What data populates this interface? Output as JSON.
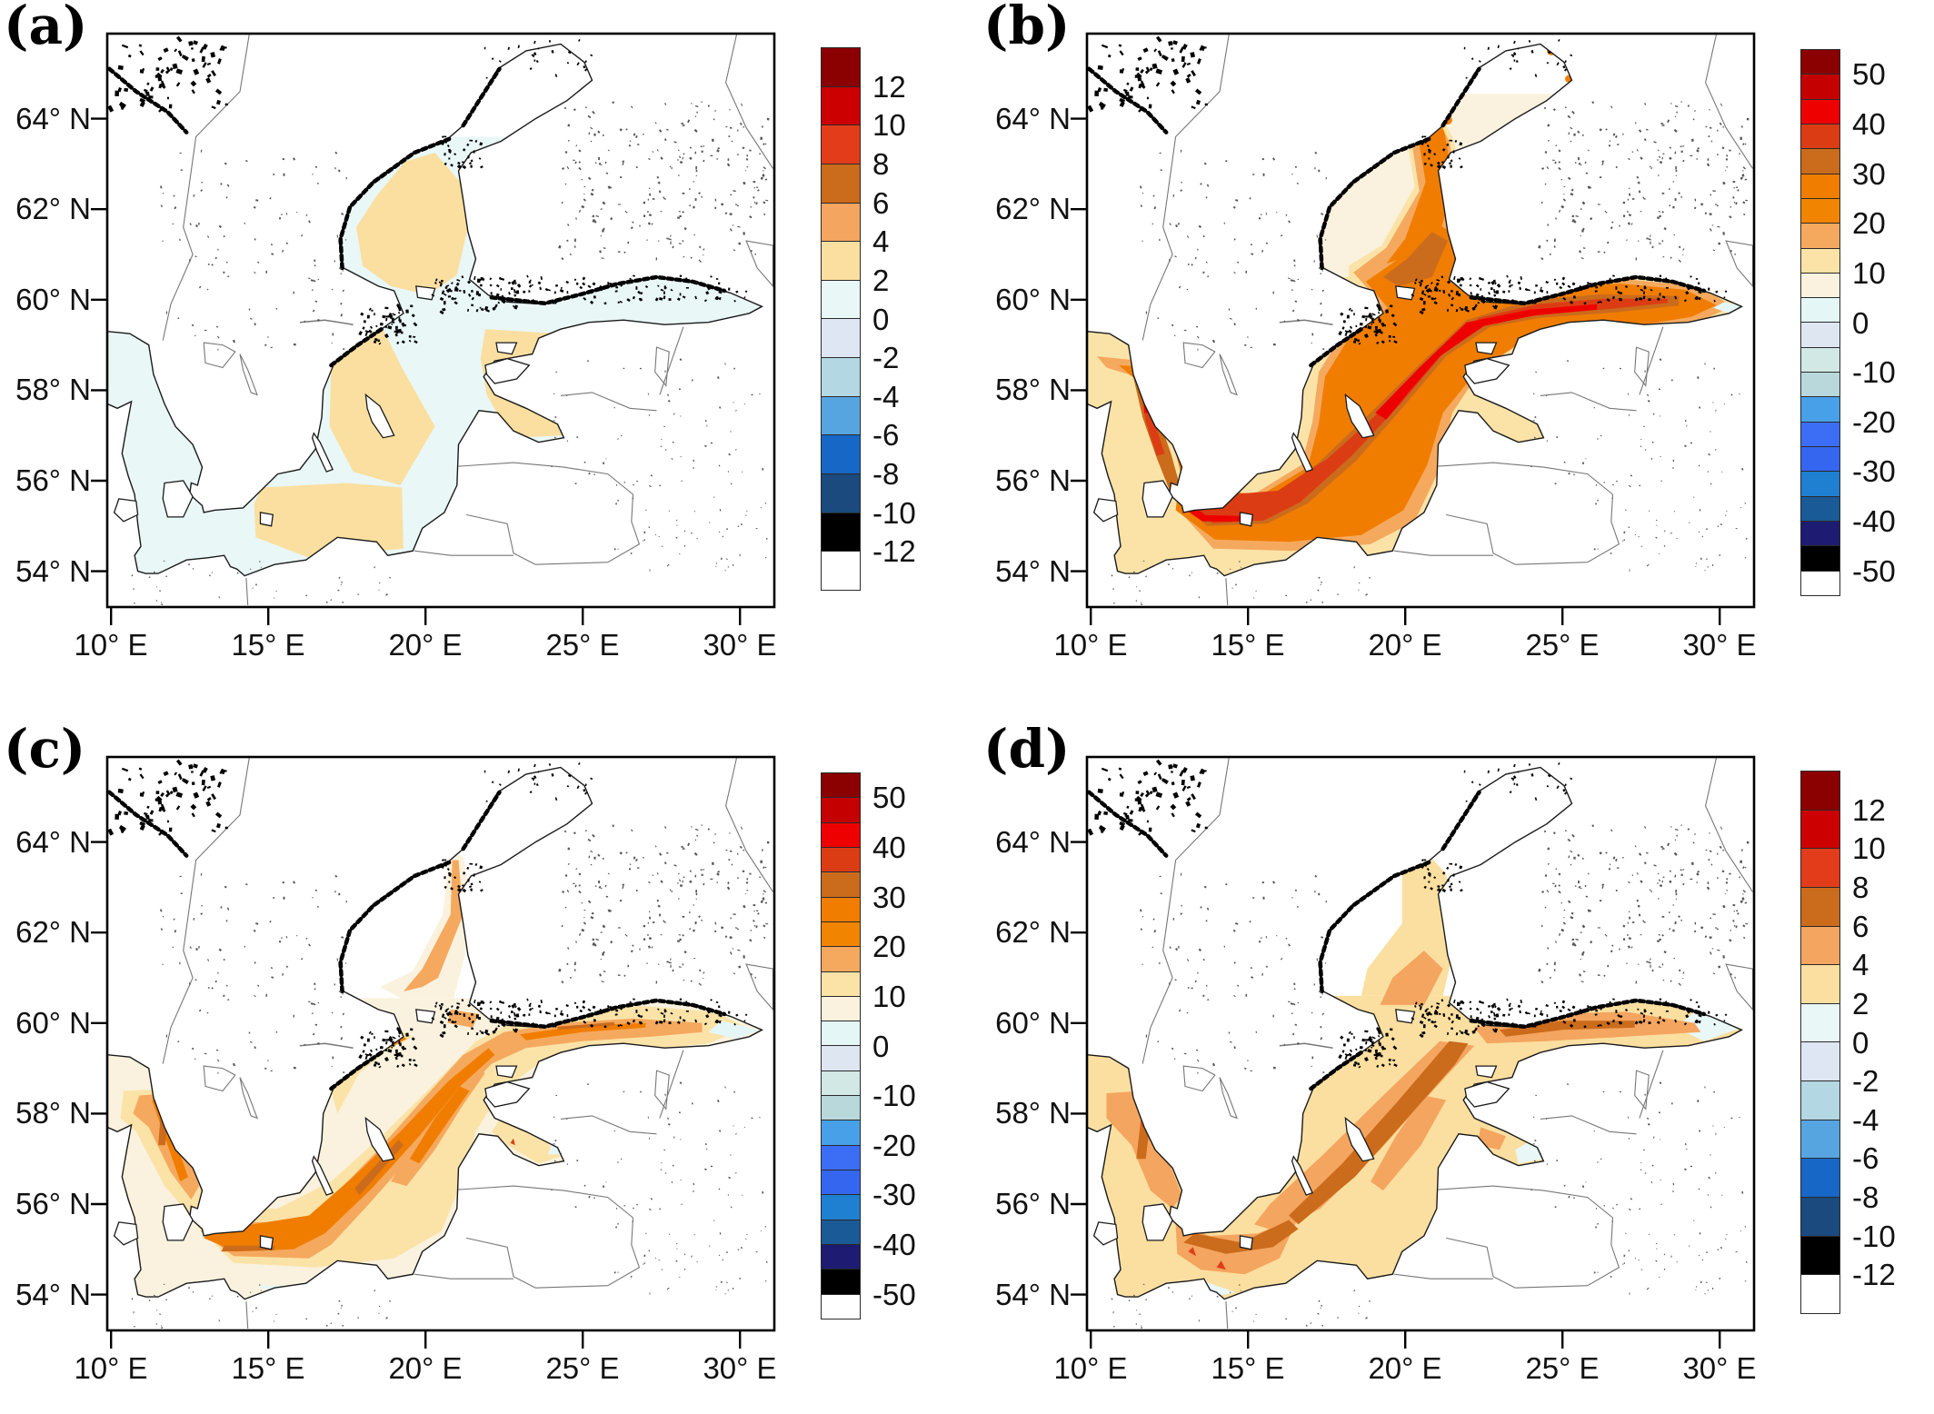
{
  "figure": {
    "background": "#ffffff",
    "panels": [
      {
        "id": "a",
        "label": "(a)",
        "colorbar": {
          "colors": [
            "#8b0000",
            "#cc0000",
            "#e23c1a",
            "#cb6b1c",
            "#f4a55f",
            "#fbdfa0",
            "#e9f7f7",
            "#dde6f2",
            "#b3d7e3",
            "#57a5e0",
            "#1767c6",
            "#1a4a7e",
            "#000000",
            "#ffffff"
          ],
          "tick_labels": [
            "12",
            "10",
            "8",
            "6",
            "4",
            "2",
            "0",
            "-2",
            "-4",
            "-6",
            "-8",
            "-10",
            "-12"
          ],
          "tick_boundaries": [
            1,
            2,
            3,
            4,
            5,
            6,
            7,
            8,
            9,
            10,
            11,
            12,
            13
          ]
        }
      },
      {
        "id": "b",
        "label": "(b)",
        "colorbar": {
          "colors": [
            "#8b0000",
            "#c40000",
            "#ef0000",
            "#dc3c14",
            "#cb6b1c",
            "#f07d00",
            "#f18501",
            "#f5a95e",
            "#fbe3a8",
            "#faf2de",
            "#e4f7f6",
            "#dee6f2",
            "#d2e8e4",
            "#b8d8dc",
            "#48a0e8",
            "#3c6ef5",
            "#3566f0",
            "#1f7fd0",
            "#1a5a96",
            "#1e1c72",
            "#000000",
            "#ffffff"
          ],
          "tick_labels": [
            "50",
            "40",
            "30",
            "20",
            "10",
            "0",
            "-10",
            "-20",
            "-30",
            "-40",
            "-50"
          ],
          "tick_boundaries": [
            1,
            3,
            5,
            7,
            9,
            11,
            13,
            15,
            17,
            19,
            21
          ]
        }
      },
      {
        "id": "c",
        "label": "(c)",
        "colorbar": {
          "colors": [
            "#8b0000",
            "#c40000",
            "#ef0000",
            "#dc3c14",
            "#cb6b1c",
            "#f07d00",
            "#f18501",
            "#f5a95e",
            "#fbe3a8",
            "#faf2de",
            "#e4f7f6",
            "#dee6f2",
            "#d2e8e4",
            "#b8d8dc",
            "#48a0e8",
            "#3c6ef5",
            "#3566f0",
            "#1f7fd0",
            "#1a5a96",
            "#1e1c72",
            "#000000",
            "#ffffff"
          ],
          "tick_labels": [
            "50",
            "40",
            "30",
            "20",
            "10",
            "0",
            "-10",
            "-20",
            "-30",
            "-40",
            "-50"
          ],
          "tick_boundaries": [
            1,
            3,
            5,
            7,
            9,
            11,
            13,
            15,
            17,
            19,
            21
          ]
        }
      },
      {
        "id": "d",
        "label": "(d)",
        "colorbar": {
          "colors": [
            "#8b0000",
            "#cc0000",
            "#e23c1a",
            "#cb6b1c",
            "#f4a55f",
            "#fbdfa0",
            "#e9f7f7",
            "#dde6f2",
            "#b3d7e3",
            "#57a5e0",
            "#1767c6",
            "#1a4a7e",
            "#000000",
            "#ffffff"
          ],
          "tick_labels": [
            "12",
            "10",
            "8",
            "6",
            "4",
            "2",
            "0",
            "-2",
            "-4",
            "-6",
            "-8",
            "-10",
            "-12"
          ],
          "tick_boundaries": [
            1,
            2,
            3,
            4,
            5,
            6,
            7,
            8,
            9,
            10,
            11,
            12,
            13
          ]
        }
      }
    ],
    "axes": {
      "x_tick_labels": [
        "10° E",
        "15° E",
        "20° E",
        "25° E",
        "30° E"
      ],
      "x_tick_lons": [
        10,
        15,
        20,
        25,
        30
      ],
      "y_tick_labels": [
        "64° N",
        "62° N",
        "60° N",
        "58° N",
        "56° N",
        "54° N"
      ],
      "y_tick_lats": [
        64,
        62,
        60,
        58,
        56,
        54
      ]
    },
    "map_extent": {
      "lon_min": 9.88,
      "lon_max": 31.1,
      "lat_min": 53.2,
      "lat_max": 65.88
    }
  },
  "chart_data": {
    "type": "heatmap",
    "subtype": "filled-contour geographic maps of the Baltic Sea region",
    "panels": [
      {
        "panel": "(a)",
        "colorbar_min": -12,
        "colorbar_max": 12,
        "colorbar_step": 2,
        "dominant_values": "0 to 4 over the Baltic Sea"
      },
      {
        "panel": "(b)",
        "colorbar_min": -50,
        "colorbar_max": 50,
        "colorbar_step": 5,
        "dominant_values": "20 to 50 over the Baltic Sea, maxima along shipping lanes"
      },
      {
        "panel": "(c)",
        "colorbar_min": -50,
        "colorbar_max": 50,
        "colorbar_step": 5,
        "dominant_values": "5 to 30, orange bands along shipping lanes"
      },
      {
        "panel": "(d)",
        "colorbar_min": -12,
        "colorbar_max": 12,
        "colorbar_step": 2,
        "dominant_values": "2 to 8, broad bands along shipping lanes"
      }
    ],
    "x_axis": {
      "ticks": [
        10,
        15,
        20,
        25,
        30
      ],
      "unit": "°E"
    },
    "y_axis": {
      "ticks": [
        54,
        56,
        58,
        60,
        62,
        64
      ],
      "unit": "°N"
    }
  }
}
